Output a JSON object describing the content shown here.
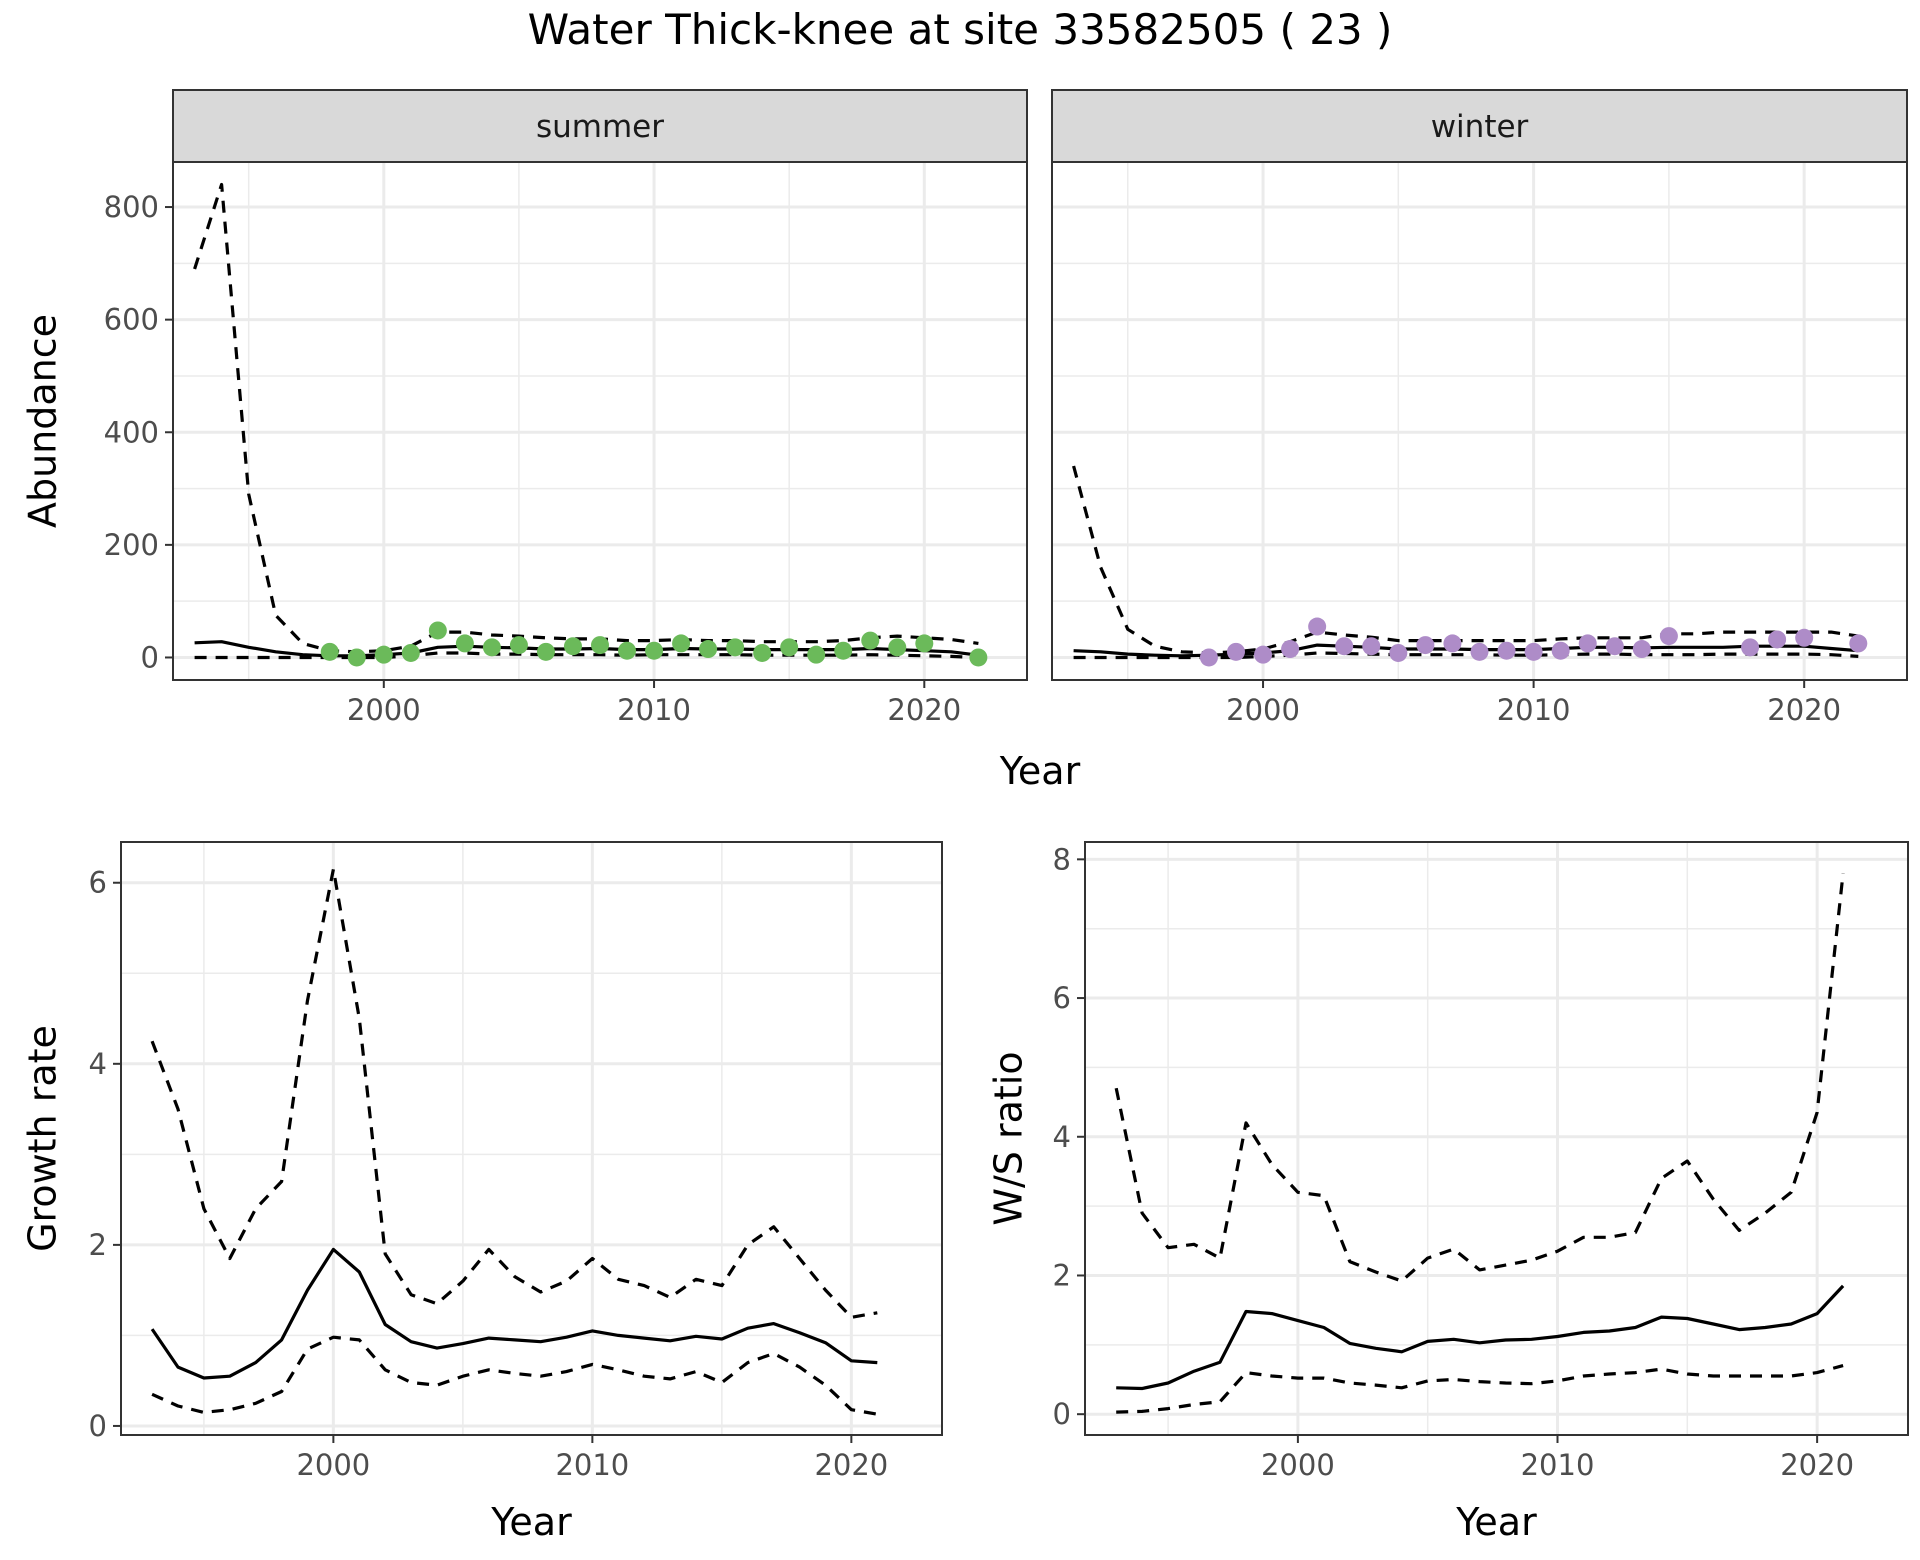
{
  "title": "Water Thick-knee at site 33582505 ( 23 )",
  "shared_xlabel": "Year",
  "colors": {
    "summer_points": "#6bba5a",
    "winter_points": "#ae8cc8",
    "strip_fill": "#d9d9d9",
    "grid": "#ebebeb",
    "line": "#000000"
  },
  "chart_data": [
    {
      "type": "line",
      "panel": "summer",
      "strip_label": "summer",
      "xlabel": "",
      "ylabel": "Abundance",
      "xlim": [
        1992.2,
        2023.8
      ],
      "ylim": [
        -40,
        880
      ],
      "x_ticks": [
        2000,
        2010,
        2020
      ],
      "y_ticks": [
        0,
        200,
        400,
        600,
        800
      ],
      "grid": true,
      "series": [
        {
          "role": "estimate",
          "style": "solid",
          "x": [
            1993,
            1994,
            1995,
            1996,
            1997,
            1998,
            1999,
            2000,
            2001,
            2002,
            2003,
            2004,
            2005,
            2006,
            2007,
            2008,
            2009,
            2010,
            2011,
            2012,
            2013,
            2014,
            2015,
            2016,
            2017,
            2018,
            2019,
            2020,
            2021,
            2022
          ],
          "values": [
            26,
            28,
            18,
            10,
            5,
            3,
            3,
            5,
            8,
            18,
            20,
            18,
            17,
            15,
            15,
            16,
            14,
            14,
            16,
            15,
            15,
            14,
            14,
            14,
            14,
            16,
            14,
            12,
            10,
            4
          ]
        },
        {
          "role": "upper",
          "style": "dashed",
          "x": [
            1993,
            1994,
            1995,
            1996,
            1997,
            1998,
            1999,
            2000,
            2001,
            2002,
            2003,
            2004,
            2005,
            2006,
            2007,
            2008,
            2009,
            2010,
            2011,
            2012,
            2013,
            2014,
            2015,
            2016,
            2017,
            2018,
            2019,
            2020,
            2021,
            2022
          ],
          "values": [
            690,
            840,
            290,
            75,
            25,
            12,
            10,
            12,
            20,
            45,
            45,
            40,
            38,
            35,
            33,
            33,
            30,
            30,
            32,
            30,
            30,
            28,
            28,
            28,
            30,
            35,
            38,
            35,
            32,
            25
          ]
        },
        {
          "role": "lower",
          "style": "dashed",
          "x": [
            1993,
            1994,
            1995,
            1996,
            1997,
            1998,
            1999,
            2000,
            2001,
            2002,
            2003,
            2004,
            2005,
            2006,
            2007,
            2008,
            2009,
            2010,
            2011,
            2012,
            2013,
            2014,
            2015,
            2016,
            2017,
            2018,
            2019,
            2020,
            2021,
            2022
          ],
          "values": [
            0,
            0,
            0,
            0,
            0,
            0,
            0,
            0,
            3,
            8,
            8,
            6,
            6,
            5,
            5,
            5,
            4,
            5,
            5,
            5,
            5,
            4,
            4,
            4,
            4,
            5,
            4,
            3,
            2,
            0
          ]
        },
        {
          "role": "observed",
          "style": "points",
          "x": [
            1998,
            1999,
            2000,
            2001,
            2002,
            2003,
            2004,
            2005,
            2006,
            2007,
            2008,
            2009,
            2010,
            2011,
            2012,
            2013,
            2014,
            2015,
            2016,
            2017,
            2018,
            2019,
            2020,
            2022
          ],
          "values": [
            10,
            0,
            5,
            8,
            48,
            25,
            18,
            22,
            10,
            20,
            22,
            12,
            12,
            25,
            15,
            18,
            8,
            18,
            5,
            12,
            30,
            18,
            25,
            0
          ]
        }
      ]
    },
    {
      "type": "line",
      "panel": "winter",
      "strip_label": "winter",
      "xlabel": "",
      "ylabel": "",
      "xlim": [
        1992.2,
        2023.8
      ],
      "ylim": [
        -40,
        880
      ],
      "x_ticks": [
        2000,
        2010,
        2020
      ],
      "y_ticks": [],
      "grid": true,
      "series": [
        {
          "role": "estimate",
          "style": "solid",
          "x": [
            1993,
            1994,
            1995,
            1996,
            1997,
            1998,
            1999,
            2000,
            2001,
            2002,
            2003,
            2004,
            2005,
            2006,
            2007,
            2008,
            2009,
            2010,
            2011,
            2012,
            2013,
            2014,
            2015,
            2016,
            2017,
            2018,
            2019,
            2020,
            2021,
            2022
          ],
          "values": [
            12,
            10,
            6,
            4,
            3,
            4,
            6,
            8,
            12,
            22,
            20,
            18,
            15,
            15,
            15,
            14,
            14,
            14,
            16,
            18,
            18,
            17,
            18,
            18,
            18,
            20,
            20,
            20,
            16,
            12
          ]
        },
        {
          "role": "upper",
          "style": "dashed",
          "x": [
            1993,
            1994,
            1995,
            1996,
            1997,
            1998,
            1999,
            2000,
            2001,
            2002,
            2003,
            2004,
            2005,
            2006,
            2007,
            2008,
            2009,
            2010,
            2011,
            2012,
            2013,
            2014,
            2015,
            2016,
            2017,
            2018,
            2019,
            2020,
            2021,
            2022
          ],
          "values": [
            340,
            160,
            50,
            20,
            10,
            8,
            10,
            15,
            28,
            45,
            40,
            36,
            30,
            30,
            30,
            30,
            30,
            30,
            33,
            35,
            35,
            35,
            42,
            42,
            45,
            45,
            45,
            45,
            45,
            38
          ]
        },
        {
          "role": "lower",
          "style": "dashed",
          "x": [
            1993,
            1994,
            1995,
            1996,
            1997,
            1998,
            1999,
            2000,
            2001,
            2002,
            2003,
            2004,
            2005,
            2006,
            2007,
            2008,
            2009,
            2010,
            2011,
            2012,
            2013,
            2014,
            2015,
            2016,
            2017,
            2018,
            2019,
            2020,
            2021,
            2022
          ],
          "values": [
            0,
            0,
            0,
            0,
            0,
            0,
            0,
            2,
            4,
            8,
            7,
            6,
            5,
            5,
            5,
            5,
            4,
            4,
            5,
            6,
            6,
            5,
            5,
            5,
            6,
            6,
            6,
            6,
            5,
            2
          ]
        },
        {
          "role": "observed",
          "style": "points",
          "x": [
            1998,
            1999,
            2000,
            2001,
            2002,
            2003,
            2004,
            2005,
            2006,
            2007,
            2008,
            2009,
            2010,
            2011,
            2012,
            2013,
            2014,
            2015,
            2018,
            2019,
            2020,
            2022
          ],
          "values": [
            0,
            10,
            5,
            15,
            55,
            20,
            20,
            8,
            22,
            25,
            10,
            12,
            10,
            12,
            25,
            20,
            15,
            38,
            18,
            32,
            35,
            25
          ]
        }
      ]
    },
    {
      "type": "line",
      "panel": "growth",
      "xlabel": "Year",
      "ylabel": "Growth rate",
      "xlim": [
        1991.8,
        2023.5
      ],
      "ylim": [
        -0.1,
        6.45
      ],
      "x_ticks": [
        2000,
        2010,
        2020
      ],
      "y_ticks": [
        0,
        2,
        4,
        6
      ],
      "grid": true,
      "series": [
        {
          "role": "estimate",
          "style": "solid",
          "x": [
            1993,
            1994,
            1995,
            1996,
            1997,
            1998,
            1999,
            2000,
            2001,
            2002,
            2003,
            2004,
            2005,
            2006,
            2007,
            2008,
            2009,
            2010,
            2011,
            2012,
            2013,
            2014,
            2015,
            2016,
            2017,
            2018,
            2019,
            2020,
            2021
          ],
          "values": [
            1.07,
            0.65,
            0.53,
            0.55,
            0.7,
            0.95,
            1.5,
            1.95,
            1.7,
            1.12,
            0.93,
            0.86,
            0.91,
            0.97,
            0.95,
            0.93,
            0.98,
            1.05,
            1.0,
            0.97,
            0.94,
            0.99,
            0.96,
            1.08,
            1.13,
            1.03,
            0.92,
            0.72,
            0.7
          ]
        },
        {
          "role": "upper",
          "style": "dashed",
          "x": [
            1993,
            1994,
            1995,
            1996,
            1997,
            1998,
            1999,
            2000,
            2001,
            2002,
            2003,
            2004,
            2005,
            2006,
            2007,
            2008,
            2009,
            2010,
            2011,
            2012,
            2013,
            2014,
            2015,
            2016,
            2017,
            2018,
            2019,
            2020,
            2021
          ],
          "values": [
            4.25,
            3.5,
            2.4,
            1.85,
            2.4,
            2.7,
            4.7,
            6.15,
            4.5,
            1.9,
            1.45,
            1.35,
            1.6,
            1.95,
            1.65,
            1.48,
            1.6,
            1.85,
            1.62,
            1.55,
            1.42,
            1.62,
            1.55,
            2.0,
            2.2,
            1.85,
            1.5,
            1.2,
            1.25
          ]
        },
        {
          "role": "lower",
          "style": "dashed",
          "x": [
            1993,
            1994,
            1995,
            1996,
            1997,
            1998,
            1999,
            2000,
            2001,
            2002,
            2003,
            2004,
            2005,
            2006,
            2007,
            2008,
            2009,
            2010,
            2011,
            2012,
            2013,
            2014,
            2015,
            2016,
            2017,
            2018,
            2019,
            2020,
            2021
          ],
          "values": [
            0.35,
            0.22,
            0.15,
            0.18,
            0.25,
            0.38,
            0.85,
            0.98,
            0.95,
            0.62,
            0.48,
            0.45,
            0.55,
            0.62,
            0.58,
            0.55,
            0.6,
            0.68,
            0.62,
            0.55,
            0.52,
            0.6,
            0.48,
            0.7,
            0.8,
            0.65,
            0.45,
            0.18,
            0.13
          ]
        }
      ]
    },
    {
      "type": "line",
      "panel": "ratio",
      "xlabel": "Year",
      "ylabel": "W/S ratio",
      "xlim": [
        1991.8,
        2023.5
      ],
      "ylim": [
        -0.3,
        8.25
      ],
      "x_ticks": [
        2000,
        2010,
        2020
      ],
      "y_ticks": [
        0,
        2,
        4,
        6,
        8
      ],
      "grid": true,
      "series": [
        {
          "role": "estimate",
          "style": "solid",
          "x": [
            1993,
            1994,
            1995,
            1996,
            1997,
            1998,
            1999,
            2000,
            2001,
            2002,
            2003,
            2004,
            2005,
            2006,
            2007,
            2008,
            2009,
            2010,
            2011,
            2012,
            2013,
            2014,
            2015,
            2016,
            2017,
            2018,
            2019,
            2020,
            2021
          ],
          "values": [
            0.38,
            0.37,
            0.45,
            0.62,
            0.75,
            1.48,
            1.45,
            1.35,
            1.25,
            1.02,
            0.95,
            0.9,
            1.05,
            1.08,
            1.03,
            1.07,
            1.08,
            1.12,
            1.18,
            1.2,
            1.25,
            1.4,
            1.38,
            1.3,
            1.22,
            1.25,
            1.3,
            1.45,
            1.85
          ]
        },
        {
          "role": "upper",
          "style": "dashed",
          "x": [
            1993,
            1994,
            1995,
            1996,
            1997,
            1998,
            1999,
            2000,
            2001,
            2002,
            2003,
            2004,
            2005,
            2006,
            2007,
            2008,
            2009,
            2010,
            2011,
            2012,
            2013,
            2014,
            2015,
            2016,
            2017,
            2018,
            2019,
            2020,
            2021
          ],
          "values": [
            4.7,
            2.9,
            2.4,
            2.45,
            2.25,
            4.2,
            3.6,
            3.2,
            3.15,
            2.2,
            2.05,
            1.92,
            2.25,
            2.38,
            2.08,
            2.15,
            2.22,
            2.35,
            2.55,
            2.55,
            2.62,
            3.4,
            3.65,
            3.1,
            2.65,
            2.9,
            3.2,
            4.35,
            7.8
          ]
        },
        {
          "role": "lower",
          "style": "dashed",
          "x": [
            1993,
            1994,
            1995,
            1996,
            1997,
            1998,
            1999,
            2000,
            2001,
            2002,
            2003,
            2004,
            2005,
            2006,
            2007,
            2008,
            2009,
            2010,
            2011,
            2012,
            2013,
            2014,
            2015,
            2016,
            2017,
            2018,
            2019,
            2020,
            2021
          ],
          "values": [
            0.03,
            0.04,
            0.08,
            0.14,
            0.18,
            0.6,
            0.55,
            0.52,
            0.52,
            0.45,
            0.42,
            0.38,
            0.48,
            0.5,
            0.47,
            0.45,
            0.44,
            0.48,
            0.55,
            0.58,
            0.6,
            0.65,
            0.58,
            0.55,
            0.55,
            0.55,
            0.55,
            0.6,
            0.7
          ]
        }
      ]
    }
  ]
}
